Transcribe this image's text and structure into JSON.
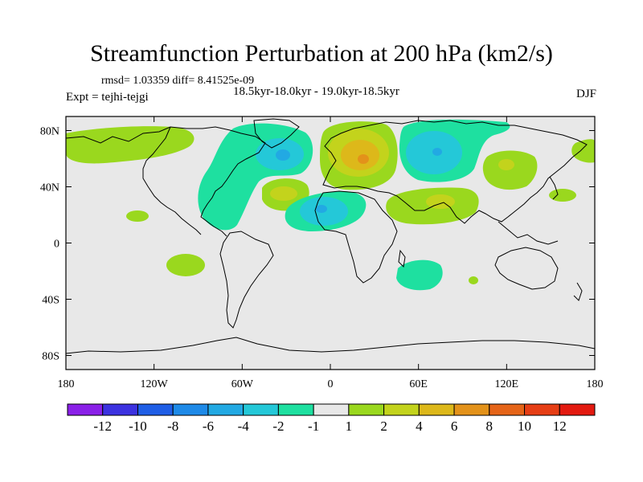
{
  "title": "Streamfunction Perturbation at 200 hPa (km2/s)",
  "stats": "rmsd= 1.03359 diff= 8.41525e-09",
  "period": "18.5kyr-18.0kyr - 19.0kyr-18.5kyr",
  "experiment": "Expt = tejhi-tejgi",
  "season": "DJF",
  "map": {
    "projection": "cylindrical-equidistant",
    "lon_range": [
      -180,
      180
    ],
    "lat_range": [
      -90,
      90
    ],
    "background_color": "#e8e8e8",
    "lon_ticks": [
      {
        "lon": -180,
        "label": "180"
      },
      {
        "lon": -120,
        "label": "120W"
      },
      {
        "lon": -60,
        "label": "60W"
      },
      {
        "lon": 0,
        "label": "0"
      },
      {
        "lon": 60,
        "label": "60E"
      },
      {
        "lon": 120,
        "label": "120E"
      },
      {
        "lon": 180,
        "label": "180"
      }
    ],
    "lat_ticks": [
      {
        "lat": 80,
        "label": "80N"
      },
      {
        "lat": 40,
        "label": "40N"
      },
      {
        "lat": 0,
        "label": "0"
      },
      {
        "lat": -40,
        "label": "40S"
      },
      {
        "lat": -80,
        "label": "80S"
      }
    ]
  },
  "colorbar": {
    "colors": [
      "#8a20e8",
      "#3c32e0",
      "#1f5ee6",
      "#1e8ae8",
      "#22a9e3",
      "#24c8d8",
      "#1ee0a0",
      "#e8e8e8",
      "#9ad81e",
      "#c3d31c",
      "#ddb81a",
      "#e3921a",
      "#e56418",
      "#e63e15",
      "#e31a10"
    ],
    "labels": [
      "-12",
      "-10",
      "-8",
      "-6",
      "-4",
      "-2",
      "-1",
      "1",
      "2",
      "4",
      "6",
      "8",
      "10",
      "12"
    ]
  }
}
